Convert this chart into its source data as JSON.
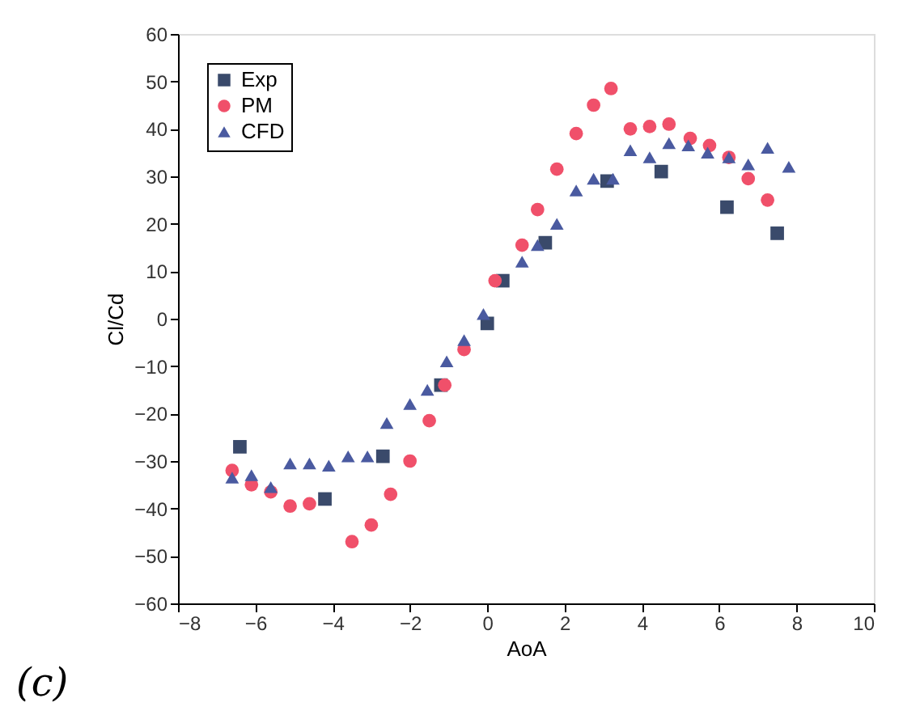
{
  "chart_data": {
    "type": "scatter",
    "xlabel": "AoA",
    "ylabel": "Cl/Cd",
    "xlim": [
      -8,
      10
    ],
    "xticks": [
      -8,
      -6,
      -4,
      -2,
      0,
      2,
      4,
      6,
      8,
      10
    ],
    "ylim": [
      -60,
      60
    ],
    "yticks": [
      -60,
      -50,
      -40,
      -30,
      -20,
      -10,
      0,
      10,
      20,
      30,
      40,
      50,
      60
    ],
    "legend": "top left",
    "grid": false,
    "annotations": [
      "(c)"
    ],
    "series": [
      {
        "name": "Exp",
        "color": "#3a4a6b",
        "marker": "square",
        "x": [
          -6.4,
          -4.2,
          -2.7,
          -1.2,
          0,
          0.4,
          1.5,
          3.1,
          4.5,
          6.2,
          7.5
        ],
        "values": [
          -27,
          -38,
          -29,
          -14,
          -1,
          8,
          16,
          29,
          31,
          23.5,
          18
        ]
      },
      {
        "name": "PM",
        "color": "#f0506a",
        "marker": "circle",
        "x": [
          -6.6,
          -6.1,
          -5.6,
          -5.1,
          -4.6,
          -3.5,
          -3.0,
          -2.5,
          -2.0,
          -1.5,
          -1.1,
          -0.6,
          0.2,
          0.9,
          1.3,
          1.8,
          2.3,
          2.75,
          3.2,
          3.7,
          4.2,
          4.7,
          5.25,
          5.75,
          6.25,
          6.75,
          7.25
        ],
        "values": [
          -32,
          -35,
          -36.5,
          -39.5,
          -39,
          -47,
          -43.5,
          -37,
          -30,
          -21.5,
          -14,
          -6.5,
          8,
          15.5,
          23,
          31.5,
          39,
          45,
          48.5,
          40,
          40.5,
          41,
          38,
          36.5,
          34,
          29.5,
          25
        ]
      },
      {
        "name": "CFD",
        "color": "#4a5aa0",
        "marker": "triangle",
        "x": [
          -6.6,
          -6.1,
          -5.6,
          -5.1,
          -4.6,
          -4.1,
          -3.6,
          -3.1,
          -2.6,
          -2.0,
          -1.55,
          -1.05,
          -0.6,
          -0.1,
          0.9,
          1.3,
          1.8,
          2.3,
          2.75,
          3.25,
          3.7,
          4.2,
          4.7,
          5.2,
          5.7,
          6.25,
          6.75,
          7.25,
          7.8
        ],
        "values": [
          -33.5,
          -33,
          -35.5,
          -30.5,
          -30.5,
          -31,
          -29,
          -29,
          -22,
          -18,
          -15,
          -9,
          -4.5,
          1,
          12,
          15.5,
          20,
          27,
          29.5,
          29.5,
          35.5,
          34,
          37,
          36.5,
          35,
          34,
          32.5,
          36,
          32
        ]
      }
    ]
  }
}
